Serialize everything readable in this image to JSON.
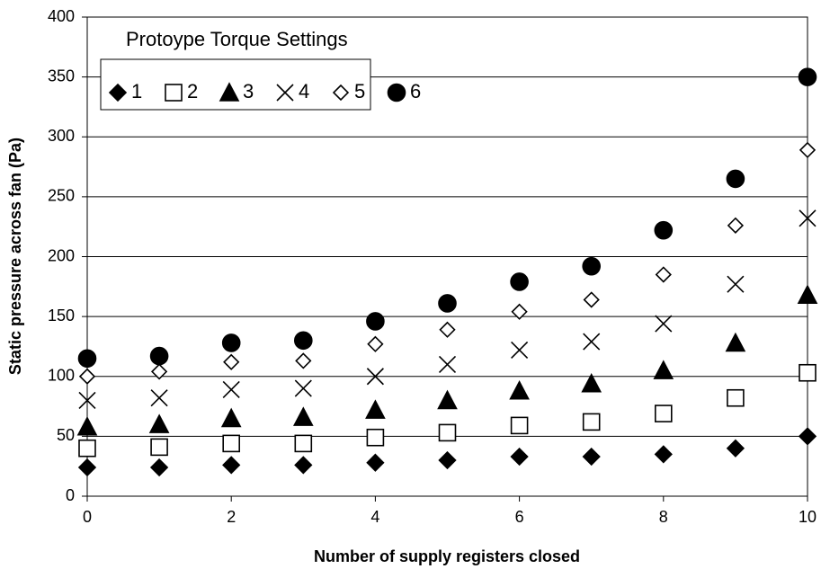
{
  "chart_data": {
    "type": "scatter",
    "xlabel": "Number of supply registers closed",
    "ylabel": "Static pressure across fan (Pa)",
    "legend_title": "Protoype Torque Settings",
    "legend": "upper left",
    "grid": true,
    "x": [
      0,
      1,
      2,
      3,
      4,
      5,
      6,
      7,
      8,
      9,
      10
    ],
    "xlim": [
      0,
      10
    ],
    "xticks": [
      0,
      2,
      4,
      6,
      8,
      10
    ],
    "ylim": [
      0,
      400
    ],
    "yticks": [
      0,
      50,
      100,
      150,
      200,
      250,
      300,
      350,
      400
    ],
    "series": [
      {
        "name": "1",
        "color": "#000000",
        "marker": "diamond",
        "filled": true,
        "values": [
          24,
          24,
          26,
          26,
          28,
          30,
          33,
          33,
          35,
          40,
          50
        ]
      },
      {
        "name": "2",
        "color": "#000000",
        "marker": "square",
        "filled": false,
        "values": [
          40,
          41,
          44,
          44,
          49,
          53,
          59,
          62,
          69,
          82,
          103
        ]
      },
      {
        "name": "3",
        "color": "#000000",
        "marker": "triangle",
        "filled": true,
        "values": [
          58,
          60,
          65,
          66,
          72,
          80,
          88,
          94,
          105,
          128,
          168
        ]
      },
      {
        "name": "4",
        "color": "#000000",
        "marker": "x",
        "filled": false,
        "values": [
          80,
          82,
          89,
          90,
          100,
          110,
          122,
          129,
          144,
          177,
          232
        ]
      },
      {
        "name": "5",
        "color": "#000000",
        "marker": "diamond",
        "filled": false,
        "values": [
          100,
          104,
          112,
          113,
          127,
          139,
          154,
          164,
          185,
          226,
          289
        ]
      },
      {
        "name": "6",
        "color": "#000000",
        "marker": "circle",
        "filled": true,
        "values": [
          115,
          117,
          128,
          130,
          146,
          161,
          179,
          192,
          222,
          265,
          350
        ]
      }
    ]
  }
}
